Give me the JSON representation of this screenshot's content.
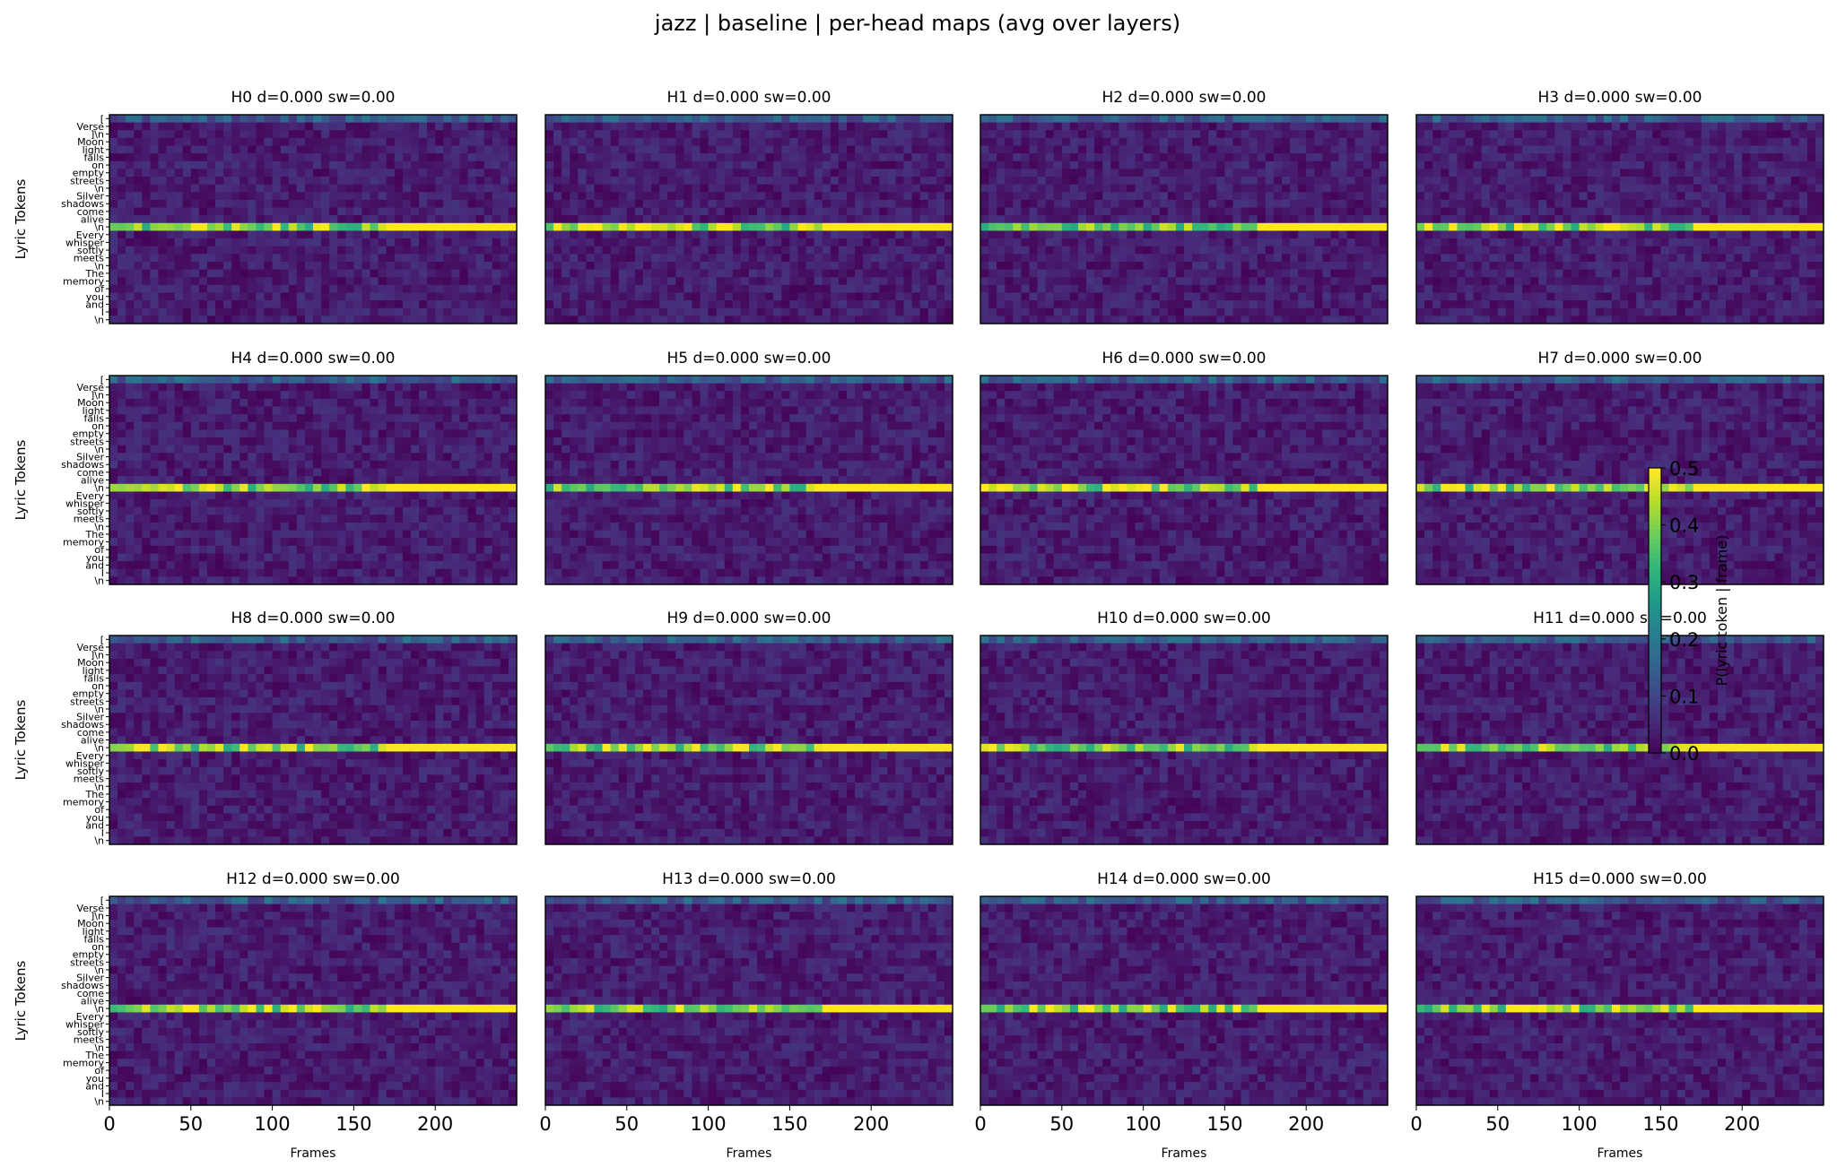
{
  "title": "jazz | baseline | per-head maps (avg over layers)",
  "chart_data": {
    "type": "heatmap",
    "title": "jazz | baseline | per-head maps (avg over layers)",
    "xlabel": "Frames",
    "ylabel": "Lyric Tokens",
    "x_range": [
      0,
      250
    ],
    "x_ticks": [
      "0",
      "50",
      "100",
      "150",
      "200"
    ],
    "y_tokens": [
      "[",
      "Verse",
      "]\\n",
      "Moon",
      "light",
      "falls",
      "on",
      "empty",
      "streets",
      "\\n",
      "Silver",
      "shadows",
      "come",
      "alive",
      "\\n",
      "Every",
      "whisper",
      "softly",
      "meets",
      "\\n",
      "The",
      "memory",
      "of",
      "you",
      "and",
      "I",
      "\\n"
    ],
    "highlight_token": "\\n",
    "grid": false,
    "colormap": "viridis",
    "colorbar": {
      "label": "P(lyric token | frame)",
      "range": [
        0.0,
        0.5
      ],
      "ticks": [
        "0.0",
        "0.1",
        "0.2",
        "0.3",
        "0.4",
        "0.5"
      ]
    },
    "panels": [
      {
        "title": "H0 d=0.000 sw=0.00"
      },
      {
        "title": "H1 d=0.000 sw=0.00"
      },
      {
        "title": "H2 d=0.000 sw=0.00"
      },
      {
        "title": "H3 d=0.000 sw=0.00"
      },
      {
        "title": "H4 d=0.000 sw=0.00"
      },
      {
        "title": "H5 d=0.000 sw=0.00"
      },
      {
        "title": "H6 d=0.000 sw=0.00"
      },
      {
        "title": "H7 d=0.000 sw=0.00"
      },
      {
        "title": "H8 d=0.000 sw=0.00"
      },
      {
        "title": "H9 d=0.000 sw=0.00"
      },
      {
        "title": "H10 d=0.000 sw=0.00"
      },
      {
        "title": "H11 d=0.000 sw=0.00"
      },
      {
        "title": "H12 d=0.000 sw=0.00"
      },
      {
        "title": "H13 d=0.000 sw=0.00"
      },
      {
        "title": "H14 d=0.000 sw=0.00"
      },
      {
        "title": "H15 d=0.000 sw=0.00"
      }
    ]
  }
}
